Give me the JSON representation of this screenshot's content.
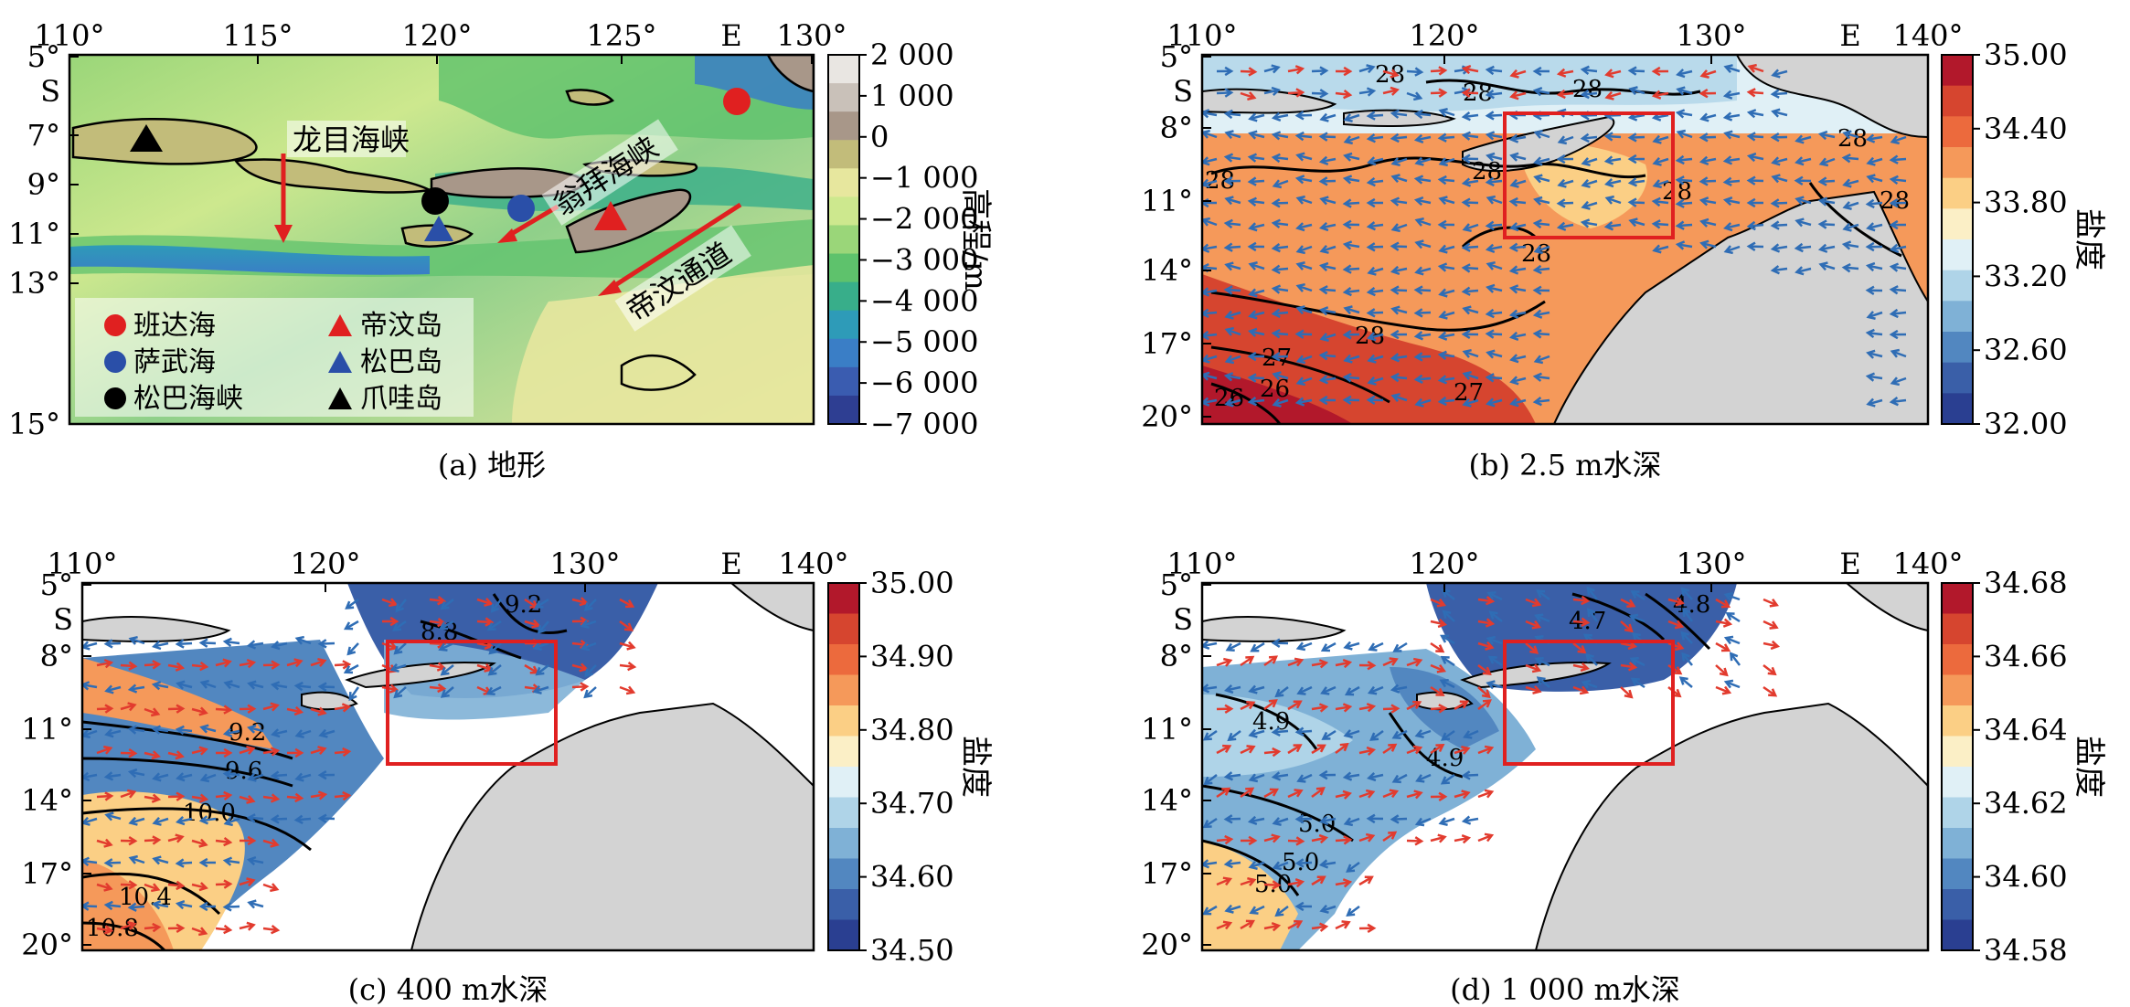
{
  "panels": [
    {
      "id": "a",
      "caption": "(a) 地形",
      "lon_ticks": [
        "110°",
        "115°",
        "120°",
        "125°",
        "E",
        "130°"
      ],
      "lat_ticks": [
        "5°",
        "S",
        "7°",
        "9°",
        "11°",
        "13°",
        "15°"
      ],
      "colorbar": {
        "ticks": [
          "2 000",
          "1 000",
          "0",
          "−1 000",
          "−2 000",
          "−3 000",
          "−4 000",
          "−5 000",
          "−6 000",
          "−7 000"
        ],
        "label": "高程/m",
        "colors": [
          "#e9e6e2",
          "#c9c1b9",
          "#a89789",
          "#c2bc7a",
          "#e7e79e",
          "#cde88e",
          "#9ad679",
          "#5ec26c",
          "#38ae8a",
          "#2e9bb8",
          "#3a7ec6",
          "#3a5cb0",
          "#2e3e92"
        ]
      },
      "annotations": [
        "龙目海峡",
        "翁拜海峡",
        "帝汶通道"
      ],
      "legend": [
        {
          "label": "班达海",
          "marker": "circle",
          "color": "#e02020"
        },
        {
          "label": "帝汶岛",
          "marker": "triangle",
          "color": "#e02020"
        },
        {
          "label": "萨武海",
          "marker": "circle",
          "color": "#2a4fa8"
        },
        {
          "label": "松巴岛",
          "marker": "triangle",
          "color": "#2a4fa8"
        },
        {
          "label": "松巴海峡",
          "marker": "circle",
          "color": "#000000"
        },
        {
          "label": "爪哇岛",
          "marker": "triangle",
          "color": "#000000"
        }
      ]
    },
    {
      "id": "b",
      "caption": "(b) 2.5 m水深",
      "lon_ticks": [
        "110°",
        "120°",
        "130°",
        "E",
        "140°"
      ],
      "lat_ticks": [
        "5°",
        "S",
        "8°",
        "11°",
        "14°",
        "17°",
        "20°"
      ],
      "colorbar": {
        "ticks": [
          "35.00",
          "34.40",
          "33.80",
          "33.20",
          "32.60",
          "32.00"
        ],
        "label": "盐度",
        "colors": [
          "#b2182b",
          "#d6452f",
          "#ec6a3d",
          "#f5995a",
          "#fbcf85",
          "#fbefc6",
          "#e0f0f6",
          "#afd4e8",
          "#7fb1d6",
          "#5287c0",
          "#3a5fa8",
          "#2a3f91"
        ]
      },
      "contour_labels": [
        "28",
        "28",
        "28",
        "28",
        "28",
        "28",
        "28",
        "28",
        "28",
        "27",
        "26",
        "26",
        "27",
        "28"
      ]
    },
    {
      "id": "c",
      "caption": "(c) 400 m水深",
      "lon_ticks": [
        "110°",
        "120°",
        "130°",
        "E",
        "140°"
      ],
      "lat_ticks": [
        "5°",
        "S",
        "8°",
        "11°",
        "14°",
        "17°",
        "20°"
      ],
      "colorbar": {
        "ticks": [
          "35.00",
          "34.90",
          "34.80",
          "34.70",
          "34.60",
          "34.50"
        ],
        "label": "盐度",
        "colors": [
          "#b2182b",
          "#d6452f",
          "#ec6a3d",
          "#f5995a",
          "#fbcf85",
          "#fbefc6",
          "#e0f0f6",
          "#afd4e8",
          "#7fb1d6",
          "#5287c0",
          "#3a5fa8",
          "#2a3f91"
        ]
      },
      "contour_labels": [
        "9.2",
        "8.8",
        "9.2",
        "9.6",
        "10.0",
        "10.4",
        "10.8"
      ]
    },
    {
      "id": "d",
      "caption": "(d) 1 000 m水深",
      "lon_ticks": [
        "110°",
        "120°",
        "130°",
        "E",
        "140°"
      ],
      "lat_ticks": [
        "5°",
        "S",
        "8°",
        "11°",
        "14°",
        "17°",
        "20°"
      ],
      "colorbar": {
        "ticks": [
          "34.68",
          "34.66",
          "34.64",
          "34.62",
          "34.60",
          "34.58"
        ],
        "label": "盐度",
        "colors": [
          "#b2182b",
          "#d6452f",
          "#ec6a3d",
          "#f5995a",
          "#fbcf85",
          "#fbefc6",
          "#e0f0f6",
          "#afd4e8",
          "#7fb1d6",
          "#5287c0",
          "#3a5fa8",
          "#2a3f91"
        ]
      },
      "contour_labels": [
        "4.7",
        "4.8",
        "4.9",
        "4.9",
        "5.0",
        "5.0",
        "5.0"
      ]
    }
  ]
}
